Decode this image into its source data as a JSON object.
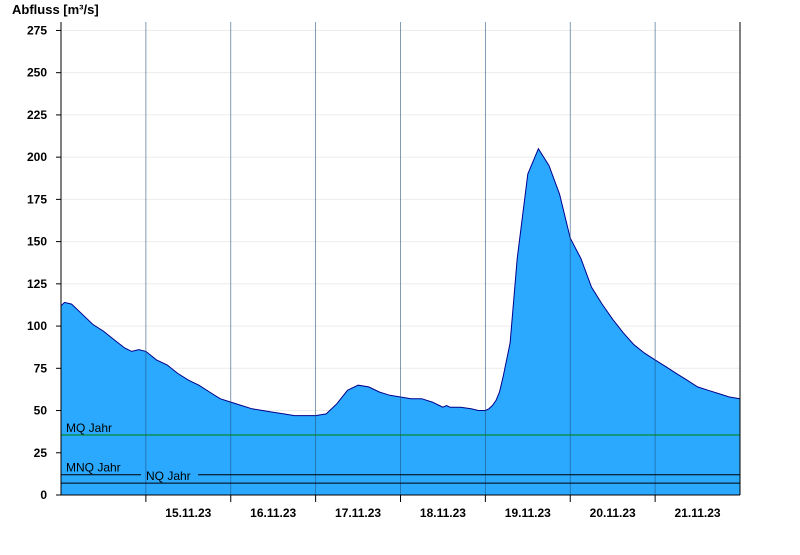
{
  "chart_data": {
    "type": "area",
    "ylabel": "Abfluss [m³/s]",
    "ylim": [
      0,
      280
    ],
    "y_ticks": [
      0,
      25,
      50,
      75,
      100,
      125,
      150,
      175,
      200,
      225,
      250,
      275
    ],
    "x_range": [
      "14.11.23 00:00",
      "22.11.23 00:00"
    ],
    "x_ticks": [
      "15.11.23",
      "16.11.23",
      "17.11.23",
      "18.11.23",
      "19.11.23",
      "20.11.23",
      "21.11.23"
    ],
    "grid": "horizontal",
    "colors": {
      "fill": "#2aa9ff",
      "line": "#00008b",
      "mq_line": "#008000",
      "ref_line": "#000000"
    },
    "reference_lines": [
      {
        "label": "MQ Jahr",
        "value": 35.5
      },
      {
        "label": "MNQ Jahr",
        "value": 12
      },
      {
        "label": "NQ Jahr",
        "value": 7
      }
    ],
    "series": [
      {
        "x": [
          "14.11.23 00:00",
          "14.11.23 01:00",
          "14.11.23 03:00",
          "14.11.23 06:00",
          "14.11.23 09:00",
          "14.11.23 12:00",
          "14.11.23 15:00",
          "14.11.23 18:00",
          "14.11.23 20:00",
          "14.11.23 22:00",
          "15.11.23 00:00",
          "15.11.23 03:00",
          "15.11.23 06:00",
          "15.11.23 09:00",
          "15.11.23 12:00",
          "15.11.23 15:00",
          "15.11.23 18:00",
          "15.11.23 21:00",
          "16.11.23 00:00",
          "16.11.23 03:00",
          "16.11.23 06:00",
          "16.11.23 09:00",
          "16.11.23 12:00",
          "16.11.23 15:00",
          "16.11.23 18:00",
          "16.11.23 21:00",
          "17.11.23 00:00",
          "17.11.23 03:00",
          "17.11.23 06:00",
          "17.11.23 09:00",
          "17.11.23 12:00",
          "17.11.23 15:00",
          "17.11.23 18:00",
          "17.11.23 21:00",
          "18.11.23 00:00",
          "18.11.23 03:00",
          "18.11.23 06:00",
          "18.11.23 09:00",
          "18.11.23 11:00",
          "18.11.23 12:00",
          "18.11.23 13:00",
          "18.11.23 14:00",
          "18.11.23 15:00",
          "18.11.23 17:00",
          "18.11.23 20:00",
          "18.11.23 22:00",
          "19.11.23 00:00",
          "19.11.23 01:00",
          "19.11.23 02:00",
          "19.11.23 03:00",
          "19.11.23 04:00",
          "19.11.23 05:00",
          "19.11.23 07:00",
          "19.11.23 09:00",
          "19.11.23 12:00",
          "19.11.23 15:00",
          "19.11.23 18:00",
          "19.11.23 21:00",
          "20.11.23 00:00",
          "20.11.23 03:00",
          "20.11.23 06:00",
          "20.11.23 09:00",
          "20.11.23 12:00",
          "20.11.23 15:00",
          "20.11.23 18:00",
          "20.11.23 21:00",
          "21.11.23 00:00",
          "21.11.23 03:00",
          "21.11.23 06:00",
          "21.11.23 09:00",
          "21.11.23 12:00",
          "21.11.23 15:00",
          "21.11.23 18:00",
          "21.11.23 21:00",
          "22.11.23 00:00"
        ],
        "values": [
          112,
          114,
          113,
          107,
          101,
          97,
          92,
          87,
          85,
          86,
          85,
          80,
          77,
          72,
          68,
          65,
          61,
          57,
          55,
          53,
          51,
          50,
          49,
          48,
          47,
          47,
          47,
          48,
          54,
          62,
          65,
          64,
          61,
          59,
          58,
          57,
          57,
          55,
          53,
          52,
          53,
          52,
          52,
          52,
          51,
          50,
          50,
          51,
          53,
          56,
          61,
          70,
          90,
          140,
          190,
          205,
          195,
          178,
          152,
          140,
          123,
          113,
          104,
          96,
          89,
          84,
          80,
          76,
          72,
          68,
          64,
          62,
          60,
          58,
          57
        ]
      }
    ]
  }
}
